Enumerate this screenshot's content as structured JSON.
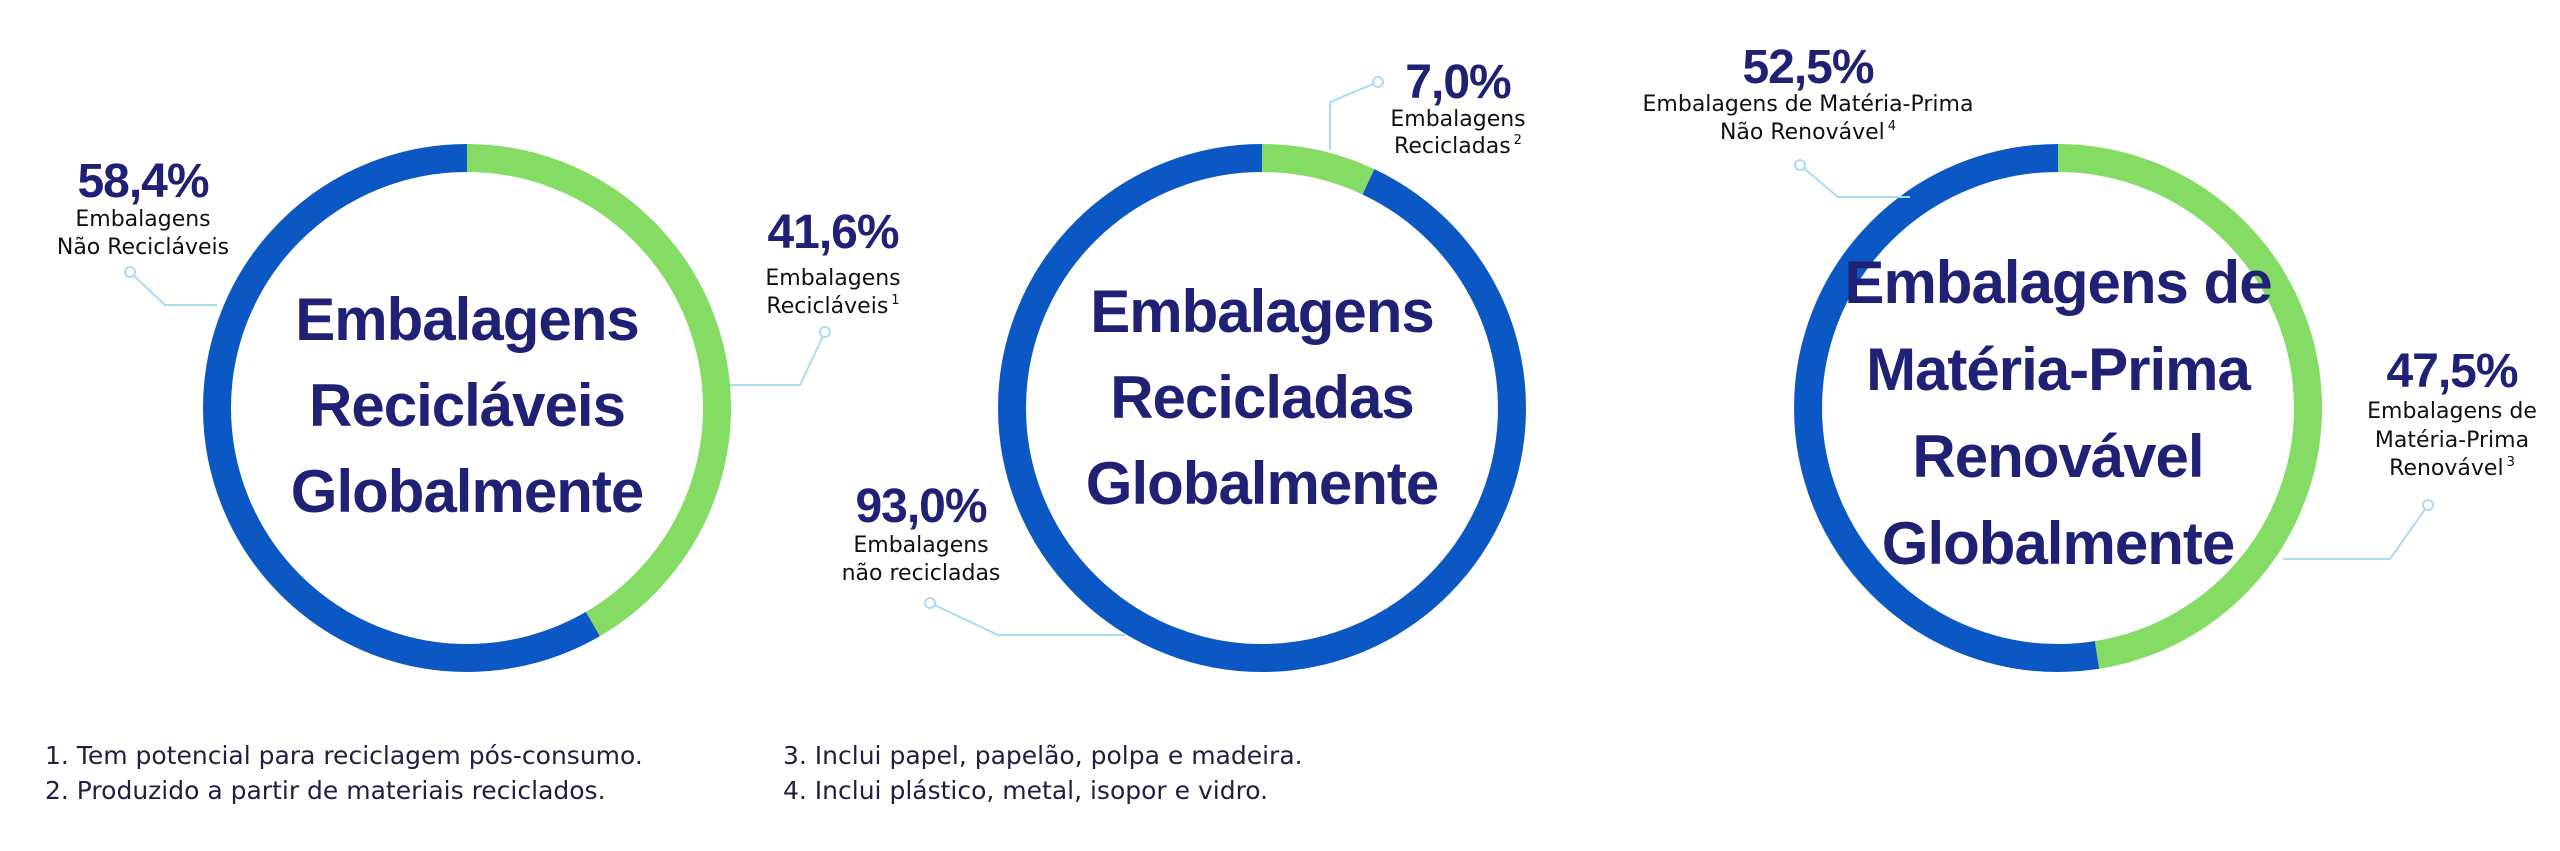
{
  "colors": {
    "primary": "#0b57c4",
    "secondary": "#84dc64",
    "text": "#1f2274"
  },
  "chart_data": [
    {
      "type": "pie",
      "donut": true,
      "center_label": [
        "Embalagens",
        "Recicláveis",
        "Globalmente"
      ],
      "slices": [
        {
          "value": 41.6,
          "color": "secondary",
          "pct_label": "41,6%",
          "label_lines": [
            "Embalagens",
            "Recicláveis"
          ],
          "sup": "1"
        },
        {
          "value": 58.4,
          "color": "primary",
          "pct_label": "58,4%",
          "label_lines": [
            "Embalagens",
            "Não Recicláveis"
          ],
          "sup": ""
        }
      ]
    },
    {
      "type": "pie",
      "donut": true,
      "center_label": [
        "Embalagens",
        "Recicladas",
        "Globalmente"
      ],
      "slices": [
        {
          "value": 7.0,
          "color": "secondary",
          "pct_label": "7,0%",
          "label_lines": [
            "Embalagens",
            "Recicladas"
          ],
          "sup": "2"
        },
        {
          "value": 93.0,
          "color": "primary",
          "pct_label": "93,0%",
          "label_lines": [
            "Embalagens",
            "não recicladas"
          ],
          "sup": ""
        }
      ]
    },
    {
      "type": "pie",
      "donut": true,
      "center_label": [
        "Embalagens de",
        "Matéria-Prima",
        "Renovável",
        "Globalmente"
      ],
      "slices": [
        {
          "value": 47.5,
          "color": "secondary",
          "pct_label": "47,5%",
          "label_lines": [
            "Embalagens de",
            "Matéria-Prima",
            "Renovável"
          ],
          "sup": "3"
        },
        {
          "value": 52.5,
          "color": "primary",
          "pct_label": "52,5%",
          "label_lines": [
            "Embalagens de Matéria-Prima",
            "Não Renovável"
          ],
          "sup": "4"
        }
      ]
    }
  ],
  "footnotes": {
    "left": [
      "1. Tem potencial para reciclagem pós-consumo.",
      "2. Produzido a partir de materiais reciclados."
    ],
    "right": [
      "3. Inclui papel, papelão, polpa e madeira.",
      "4. Inclui plástico, metal, isopor e vidro."
    ]
  }
}
